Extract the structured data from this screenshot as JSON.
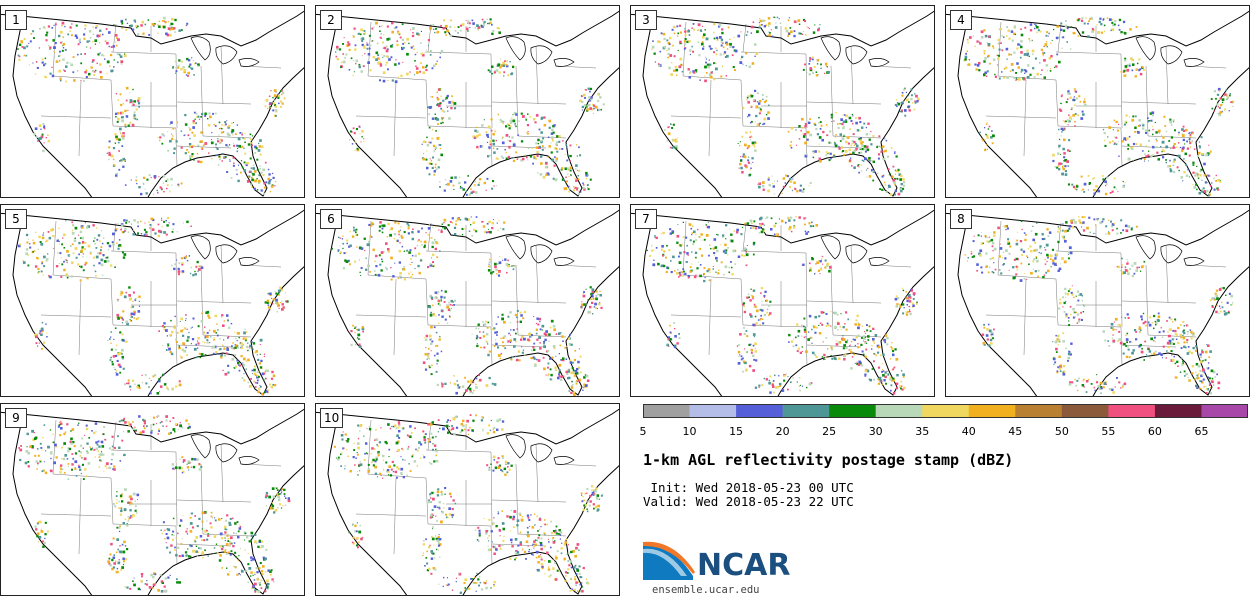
{
  "panels": [
    {
      "label": "1"
    },
    {
      "label": "2"
    },
    {
      "label": "3"
    },
    {
      "label": "4"
    },
    {
      "label": "5"
    },
    {
      "label": "6"
    },
    {
      "label": "7"
    },
    {
      "label": "8"
    },
    {
      "label": "9"
    },
    {
      "label": "10"
    }
  ],
  "colorbar": {
    "ticks": [
      "5",
      "10",
      "15",
      "20",
      "25",
      "30",
      "35",
      "40",
      "45",
      "50",
      "55",
      "60",
      "65"
    ],
    "colors": [
      "#a0a0a0",
      "#b4bce8",
      "#5560d8",
      "#4f9696",
      "#0a8a0a",
      "#b8d8b8",
      "#f0d860",
      "#f0b020",
      "#b88030",
      "#8a5a3a",
      "#f05080",
      "#6a1a3a",
      "#a848a8"
    ]
  },
  "title": "1-km AGL reflectivity postage stamp (dBZ)",
  "init": " Init: Wed 2018-05-23 00 UTC",
  "valid": "Valid: Wed 2018-05-23 22 UTC",
  "logo": {
    "name": "NCAR",
    "url": "ensemble.ucar.edu",
    "colors": [
      "#1b4f7f",
      "#0f7ac0",
      "#f07828"
    ]
  }
}
